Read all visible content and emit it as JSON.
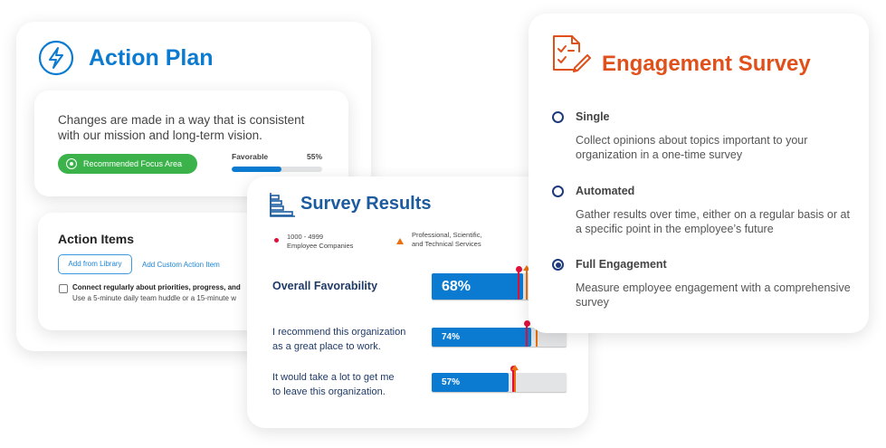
{
  "action_plan": {
    "title": "Action Plan",
    "icon": "lightning-bolt-icon",
    "statement": "Changes are made in a way that is consistent with our mission and long-term vision.",
    "focus_label": "Recommended Focus Area",
    "favorable_label": "Favorable",
    "favorable_value": "55%",
    "favorable_pct": 55,
    "action_items": {
      "title": "Action Items",
      "add_library": "Add from Library",
      "add_custom": "Add Custom Action Item",
      "item_title": "Connect regularly about priorities, progress, and",
      "item_sub": "Use a 5-minute daily team huddle or a 15-minute w"
    }
  },
  "survey_results": {
    "title": "Survey Results",
    "icon": "bar-list-icon",
    "legend": [
      {
        "label": "1000 - 4999 Employee Companies",
        "l1": "1000 - 4999",
        "l2": "Employee Companies",
        "color": "#e0103a",
        "shape": "circle"
      },
      {
        "label": "Professional, Scientific, and Technical Services",
        "l1": "Professional, Scientific,",
        "l2": "and Technical Services",
        "color": "#e87010",
        "shape": "triangle"
      }
    ],
    "rows": [
      {
        "label": "Overall Favorability",
        "value": "68%",
        "pct": 68,
        "benchmark_company": 64,
        "benchmark_industry": 70
      },
      {
        "label": "I recommend this organization as a great place to work.",
        "l1": "I recommend this organization",
        "l2": "as a great place to work.",
        "value": "74%",
        "pct": 74,
        "benchmark_company": 70,
        "benchmark_industry": 77
      },
      {
        "label": "It would take a lot to get me to leave this organization.",
        "l1": "It would take a lot to get me",
        "l2": "to leave this organization.",
        "value": "57%",
        "pct": 57,
        "benchmark_company": 60,
        "benchmark_industry": 61
      }
    ]
  },
  "engagement": {
    "title": "Engagement Survey",
    "icon": "checklist-pencil-icon",
    "options": [
      {
        "title": "Single",
        "desc": "Collect opinions about topics important to your organization in a one-time survey",
        "selected": false
      },
      {
        "title": "Automated",
        "desc": "Gather results over time, either on a regular basis or at a specific point in the employee’s future",
        "selected": false
      },
      {
        "title": "Full Engagement",
        "desc": "Measure employee engagement with a comprehensive survey",
        "selected": true
      }
    ]
  }
}
